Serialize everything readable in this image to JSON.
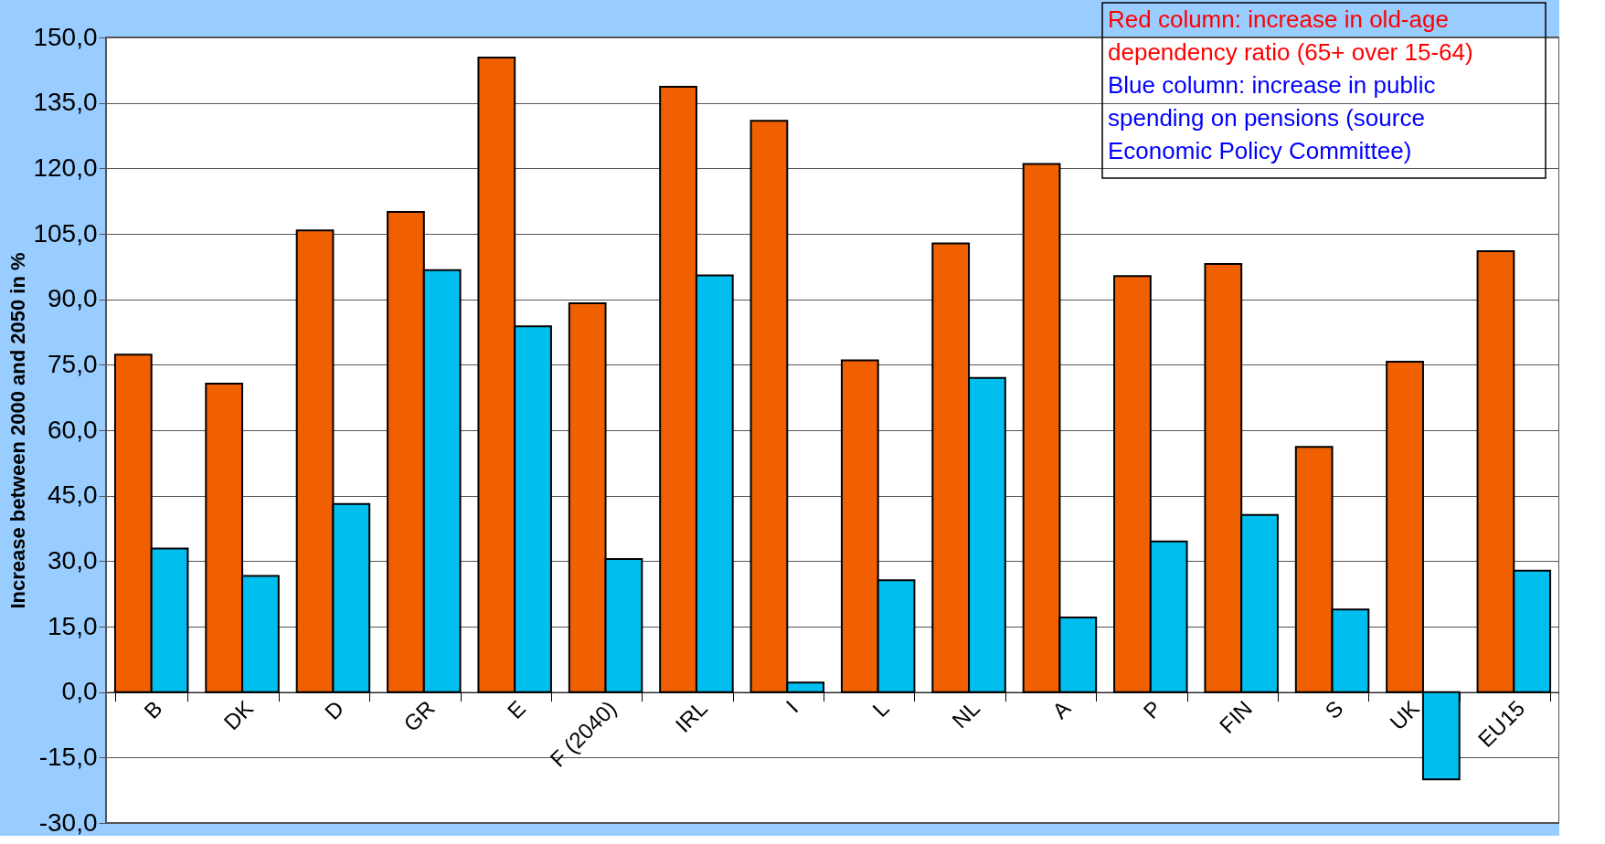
{
  "chart_data": {
    "type": "bar",
    "ylabel": "Increase between 2000 and 2050 in %",
    "categories": [
      "B",
      "DK",
      "D",
      "GR",
      "E",
      "F (2040)",
      "IRL",
      "I",
      "L",
      "NL",
      "A",
      "P",
      "FIN",
      "S",
      "UK",
      "EU15"
    ],
    "series": [
      {
        "color": "#f06000",
        "values": [
          77.3,
          70.7,
          105.8,
          110.0,
          145.4,
          89.1,
          138.7,
          130.9,
          76.0,
          102.8,
          121.0,
          95.3,
          98.1,
          56.2,
          75.7,
          101.0
        ]
      },
      {
        "color": "#00bfef",
        "values": [
          32.9,
          26.6,
          43.1,
          96.7,
          83.8,
          30.5,
          95.5,
          2.2,
          25.6,
          72.0,
          17.1,
          34.5,
          40.6,
          18.9,
          -20.0,
          27.8
        ]
      }
    ],
    "ylim": [
      -30,
      150
    ],
    "yticks": [
      {
        "value": -30,
        "label": "-30,0"
      },
      {
        "value": -15,
        "label": "-15,0"
      },
      {
        "value": 0,
        "label": "0,0"
      },
      {
        "value": 15,
        "label": "15,0"
      },
      {
        "value": 30,
        "label": "30,0"
      },
      {
        "value": 45,
        "label": "45,0"
      },
      {
        "value": 60,
        "label": "60,0"
      },
      {
        "value": 75,
        "label": "75,0"
      },
      {
        "value": 90,
        "label": "90,0"
      },
      {
        "value": 105,
        "label": "105,0"
      },
      {
        "value": 120,
        "label": "120,0"
      },
      {
        "value": 135,
        "label": "135,0"
      },
      {
        "value": 150,
        "label": "150,0"
      }
    ],
    "grid": "y",
    "annotations": [
      "Red column: increase in old-age dependency ratio (65+ over 15-64)",
      "Blue column: increase in public spending on pensions (source Economic Policy Committee)"
    ]
  }
}
